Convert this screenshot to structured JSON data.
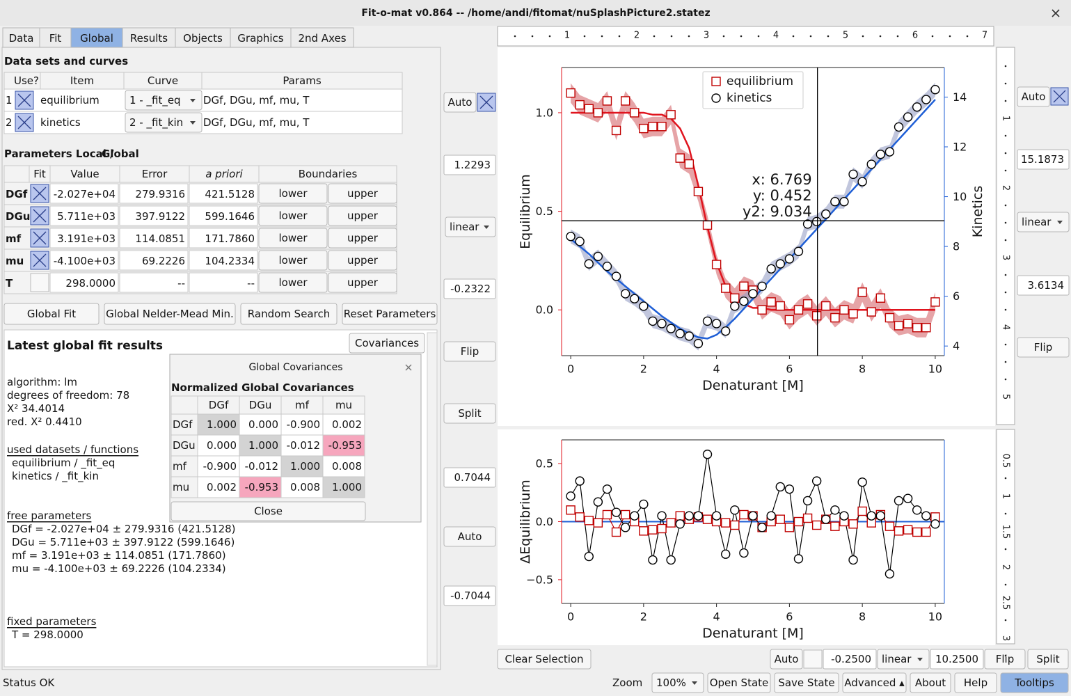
{
  "window": {
    "title": "Fit-o-mat v0.864 -- /home/andi/fitomat/nuSplashPicture2.statez"
  },
  "tabs": [
    "Data",
    "Fit",
    "Global",
    "Results",
    "Objects",
    "Graphics",
    "2nd Axes"
  ],
  "datasets": {
    "title": "Data sets and curves",
    "headers": [
      "Use?",
      "Item",
      "Curve",
      "Params"
    ],
    "use": [
      true,
      true
    ],
    "rows": [
      [
        "1",
        "equilibrium",
        "1 - _fit_eq",
        "DGf, DGu, mf, mu, T"
      ],
      [
        "2",
        "kinetics",
        "2 - _fit_kin",
        "DGf, DGu, mf, mu, T"
      ]
    ]
  },
  "parameters": {
    "title": "Parameters Local /",
    "title_link": "Global",
    "headers": [
      "Fit",
      "Value",
      "Error",
      "a priori",
      "Boundaries"
    ],
    "fit": [
      true,
      true,
      true,
      true,
      false
    ],
    "rows": [
      [
        "DGf",
        "-2.027e+04",
        "279.9316",
        "421.5128",
        "lower",
        "upper"
      ],
      [
        "DGu",
        "5.711e+03",
        "397.9122",
        "599.1646",
        "lower",
        "upper"
      ],
      [
        "mf",
        "3.191e+03",
        "114.0851",
        "171.7860",
        "lower",
        "upper"
      ],
      [
        "mu",
        "-4.100e+03",
        "69.2226",
        "104.2334",
        "lower",
        "upper"
      ],
      [
        "T",
        "298.0000",
        "--",
        "--",
        "lower",
        "upper"
      ]
    ]
  },
  "buttons": [
    "Global Fit",
    "Global Nelder-Mead Min.",
    "Random Search",
    "Reset Parameters"
  ],
  "results": {
    "title": "Latest global fit results",
    "button": "Covariances",
    "blocks": [
      {
        "lines": [
          "algorithm: lm",
          "degrees of freedom: 78",
          "X² 34.4014",
          "red. X² 0.4410"
        ]
      },
      {
        "heading": "used datasets / functions",
        "lines": [
          "equilibrium / _fit_eq",
          "kinetics / _fit_kin"
        ]
      },
      {
        "heading": "free parameters",
        "lines": [
          "DGf = -2.027e+04 ± 279.9316 (421.5128)",
          "DGu = 5.711e+03 ± 397.9122 (599.1646)",
          "mf = 3.191e+03 ± 114.0851 (171.7860)",
          "mu = -4.100e+03 ± 69.2226 (104.2334)"
        ]
      },
      {
        "heading": "fixed parameters",
        "lines": [
          "T = 298.0000"
        ]
      }
    ]
  },
  "covariance_dialog": {
    "title": "Global Covariances",
    "subtitle": "Normalized Global Covariances",
    "headers": [
      "DGf",
      "DGu",
      "mf",
      "mu"
    ],
    "rows": [
      {
        "name": "DGf",
        "values": [
          "1.000",
          "0.000",
          "-0.900",
          "0.002"
        ]
      },
      {
        "name": "DGu",
        "values": [
          "0.000",
          "1.000",
          "-0.012",
          "-0.953"
        ]
      },
      {
        "name": "mf",
        "values": [
          "-0.900",
          "-0.012",
          "1.000",
          "0.008"
        ]
      },
      {
        "name": "mu",
        "values": [
          "0.002",
          "-0.953",
          "0.008",
          "1.000"
        ]
      }
    ],
    "button": "Close"
  },
  "y_controls": {
    "auto": "Auto",
    "scale": "linear",
    "flip": "Flip",
    "split": "Split",
    "auto_lower": "Auto"
  },
  "y2_controls": {
    "auto": "Auto",
    "scale": "linear",
    "flip": "Flip"
  },
  "x_controls": {
    "clear": "Clear Selection",
    "auto": "Auto",
    "xmin": "-0.2500",
    "scale": "linear",
    "xmax": "10.2500",
    "flip": "Flip",
    "split": "Split"
  },
  "status_bar": {
    "status": "Status OK",
    "zoom_label": "Zoom",
    "zoom": "100%",
    "buttons": [
      "Open State",
      "Save State",
      "Advanced ▴",
      "About",
      "Help",
      "Tooltips"
    ]
  },
  "rulers": {
    "top": [
      "1",
      "2",
      "3",
      "4",
      "5",
      "6",
      "7"
    ],
    "right_top": [
      "1",
      "2",
      "3",
      "4",
      "5"
    ],
    "right_bottom": [
      "0.5",
      "1",
      "1.5",
      "2",
      "2.5",
      "3"
    ]
  },
  "chart_data": [
    {
      "type": "scatter",
      "xlabel": "Denaturant [M]",
      "ylabel": "Equilibrium",
      "y2label": "Kinetics",
      "xlim": [
        -0.25,
        10.25
      ],
      "ylim": [
        -0.2322,
        1.2293
      ],
      "y2lim": [
        3.6134,
        15.1873
      ],
      "xticks": [
        0,
        2,
        4,
        6,
        8,
        10
      ],
      "yticks": [
        {
          "value": 0,
          "label": "0.0"
        },
        {
          "value": 0.5,
          "label": "0.5"
        },
        {
          "value": 1,
          "label": "1.0"
        }
      ],
      "y2ticks": [
        4,
        6,
        8,
        10,
        12,
        14
      ],
      "legend": "upper center",
      "confidence_band": true,
      "cursor": {
        "x": {
          "value": 6.769,
          "label": "x: 6.769"
        },
        "y": {
          "value": 0.452,
          "label": "y: 0.452"
        },
        "y2": {
          "value": 9.034,
          "label": "y2: 9.034"
        }
      },
      "x": [
        0,
        0.25,
        0.5,
        0.75,
        1,
        1.25,
        1.5,
        1.75,
        2,
        2.25,
        2.5,
        2.75,
        3,
        3.25,
        3.5,
        3.75,
        4,
        4.25,
        4.5,
        4.75,
        5,
        5.25,
        5.5,
        5.75,
        6,
        6.25,
        6.5,
        6.75,
        7,
        7.25,
        7.5,
        7.75,
        8,
        8.25,
        8.5,
        8.75,
        9,
        9.25,
        9.5,
        9.75,
        10
      ],
      "series": [
        {
          "name": "equilibrium",
          "color": "#e0141e",
          "marker": "square",
          "marker_color": "#c00000",
          "band_color": "#d6676c",
          "values": [
            1.1,
            1.04,
            1.02,
            1.0,
            1.06,
            0.91,
            1.06,
            1.0,
            0.92,
            0.93,
            0.93,
            0.99,
            0.77,
            0.74,
            0.6,
            0.43,
            0.23,
            0.11,
            0.06,
            0.12,
            0.1,
            0.0,
            0.04,
            0.02,
            -0.05,
            0.0,
            0.03,
            -0.03,
            0.02,
            -0.04,
            0.0,
            -0.02,
            0.09,
            -0.01,
            0.06,
            -0.04,
            -0.08,
            -0.07,
            -0.09,
            -0.09,
            0.04
          ],
          "fit": [
            1,
            1,
            1,
            1,
            1,
            1,
            1,
            1,
            1,
            0.99,
            0.99,
            0.97,
            0.92,
            0.82,
            0.63,
            0.42,
            0.24,
            0.12,
            0.06,
            0.03,
            0.01,
            0.01,
            0,
            0,
            0,
            0,
            0,
            0,
            0,
            0,
            0,
            0,
            0,
            0,
            0,
            0,
            0,
            0,
            0,
            0,
            0
          ]
        },
        {
          "name": "kinetics",
          "axis": "y2",
          "color": "#1f5fd6",
          "marker": "circle",
          "marker_color": "#000000",
          "band_color": "#97a0c6",
          "values": [
            8.4,
            8.2,
            7.3,
            7.6,
            7.2,
            6.8,
            6.1,
            5.9,
            5.6,
            5.0,
            4.9,
            4.7,
            4.5,
            4.4,
            4.1,
            5.0,
            4.9,
            4.6,
            5.6,
            5.8,
            6.1,
            6.4,
            7.1,
            7.3,
            7.5,
            7.8,
            8.9,
            9.0,
            9.3,
            9.8,
            9.8,
            10.9,
            10.6,
            11.3,
            11.7,
            11.8,
            12.8,
            13.2,
            13.6,
            13.9,
            14.3
          ],
          "fit": [
            8.3,
            8.0,
            7.7,
            7.35,
            7.0,
            6.7,
            6.4,
            6.1,
            5.8,
            5.5,
            5.2,
            4.95,
            4.7,
            4.5,
            4.35,
            4.3,
            4.45,
            4.75,
            5.1,
            5.5,
            5.9,
            6.3,
            6.7,
            7.1,
            7.5,
            7.9,
            8.3,
            8.7,
            9.1,
            9.5,
            9.9,
            10.3,
            10.7,
            11.1,
            11.5,
            11.9,
            12.3,
            12.7,
            13.1,
            13.5,
            13.9
          ]
        }
      ]
    },
    {
      "type": "scatter",
      "xlabel": "Denaturant [M]",
      "ylabel": "ΔEquilibrium",
      "xlim": [
        -0.25,
        10.25
      ],
      "ylim": [
        -0.7044,
        0.7044
      ],
      "xticks": [
        0,
        2,
        4,
        6,
        8,
        10
      ],
      "yticks": [
        {
          "value": -0.5,
          "label": "−0.5"
        },
        {
          "value": 0,
          "label": "0.0"
        },
        {
          "value": 0.5,
          "label": "0.5"
        }
      ],
      "connect_points": true,
      "zero_line_color": "#1f5fd6",
      "x": [
        0,
        0.25,
        0.5,
        0.75,
        1,
        1.25,
        1.5,
        1.75,
        2,
        2.25,
        2.5,
        2.75,
        3,
        3.25,
        3.5,
        3.75,
        4,
        4.25,
        4.5,
        4.75,
        5,
        5.25,
        5.5,
        5.75,
        6,
        6.25,
        6.5,
        6.75,
        7,
        7.25,
        7.5,
        7.75,
        8,
        8.25,
        8.5,
        8.75,
        9,
        9.25,
        9.5,
        9.75,
        10
      ],
      "series": [
        {
          "name": "equilibrium",
          "color": "#e0141e",
          "marker": "square",
          "marker_color": "#c00000",
          "values": [
            0.1,
            0.04,
            0.01,
            -0.01,
            0.06,
            -0.09,
            0.06,
            0.0,
            -0.08,
            -0.07,
            -0.06,
            -0.01,
            0.05,
            0.02,
            0.04,
            0.02,
            0.0,
            -0.01,
            -0.03,
            0.06,
            0.05,
            -0.05,
            0.0,
            0.02,
            -0.05,
            0.0,
            0.03,
            -0.03,
            0.02,
            -0.04,
            0.0,
            -0.02,
            0.09,
            -0.01,
            0.06,
            -0.04,
            -0.08,
            -0.07,
            -0.09,
            -0.09,
            0.04
          ]
        },
        {
          "name": "kinetics",
          "color": "#000000",
          "marker": "circle",
          "marker_color": "#000000",
          "values": [
            0.22,
            0.35,
            -0.3,
            0.17,
            0.28,
            0.08,
            -0.05,
            0.05,
            0.15,
            -0.33,
            0.05,
            -0.33,
            -0.02,
            0.05,
            0.05,
            0.58,
            0.05,
            -0.28,
            0.1,
            -0.27,
            0.05,
            -0.05,
            0.05,
            0.3,
            0.28,
            -0.32,
            0.18,
            0.35,
            0.02,
            0.1,
            0.05,
            -0.33,
            0.34,
            0.05,
            0.05,
            -0.45,
            0.18,
            0.2,
            0.1,
            0.05,
            -0.02
          ]
        }
      ]
    }
  ]
}
